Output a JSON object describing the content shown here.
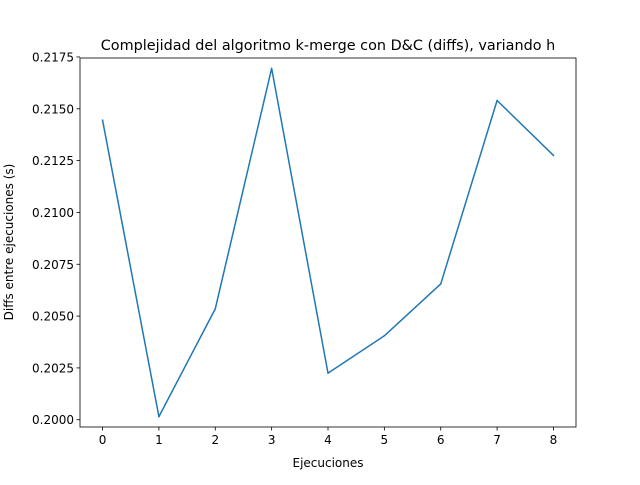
{
  "chart_data": {
    "type": "line",
    "title": "Complejidad del algoritmo k-merge con D&C (diffs), variando h",
    "xlabel": "Ejecuciones",
    "ylabel": "Diffs entre ejecuciones (s)",
    "x": [
      0,
      1,
      2,
      3,
      4,
      5,
      6,
      7,
      8
    ],
    "series": [
      {
        "values": [
          0.21445,
          0.20015,
          0.20535,
          0.21695,
          0.20225,
          0.20405,
          0.20655,
          0.2154,
          0.21275
        ]
      }
    ],
    "xlim": [
      -0.4,
      8.4
    ],
    "ylim": [
      0.19965,
      0.21745
    ],
    "xticks": [
      "0",
      "1",
      "2",
      "3",
      "4",
      "5",
      "6",
      "7",
      "8"
    ],
    "yticks": [
      "0.2000",
      "0.2025",
      "0.2050",
      "0.2075",
      "0.2100",
      "0.2125",
      "0.2150",
      "0.2175"
    ],
    "ytick_values": [
      0.2,
      0.2025,
      0.205,
      0.2075,
      0.21,
      0.2125,
      0.215,
      0.2175
    ],
    "line_color": "#1f77b4",
    "grid": false,
    "legend": "none"
  }
}
